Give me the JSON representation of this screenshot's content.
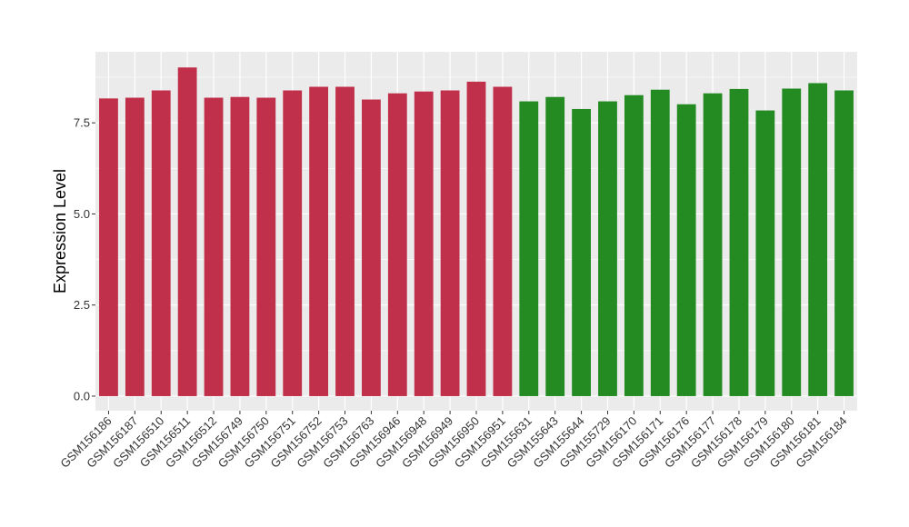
{
  "chart_data": {
    "type": "bar",
    "title": "",
    "xlabel": "",
    "ylabel": "Expression Level",
    "ylim": [
      -0.4,
      9.45
    ],
    "yticks": [
      0.0,
      2.5,
      5.0,
      7.5
    ],
    "ytick_labels": [
      "0.0",
      "2.5",
      "5.0",
      "7.5"
    ],
    "grid": true,
    "legend": "none",
    "categories": [
      "GSM156186",
      "GSM156187",
      "GSM156510",
      "GSM156511",
      "GSM156512",
      "GSM156749",
      "GSM156750",
      "GSM156751",
      "GSM156752",
      "GSM156753",
      "GSM156763",
      "GSM156946",
      "GSM156948",
      "GSM156949",
      "GSM156950",
      "GSM156951",
      "GSM155631",
      "GSM155643",
      "GSM155644",
      "GSM155729",
      "GSM156170",
      "GSM156171",
      "GSM156176",
      "GSM156177",
      "GSM156178",
      "GSM156179",
      "GSM156180",
      "GSM156181",
      "GSM156184"
    ],
    "values": [
      8.17,
      8.19,
      8.39,
      9.02,
      8.19,
      8.21,
      8.19,
      8.39,
      8.49,
      8.49,
      8.14,
      8.31,
      8.36,
      8.39,
      8.63,
      8.49,
      8.09,
      8.21,
      7.88,
      8.09,
      8.26,
      8.41,
      8.01,
      8.31,
      8.43,
      7.84,
      8.44,
      8.59,
      8.39
    ],
    "bar_colors": [
      "#c0304a",
      "#c0304a",
      "#c0304a",
      "#c0304a",
      "#c0304a",
      "#c0304a",
      "#c0304a",
      "#c0304a",
      "#c0304a",
      "#c0304a",
      "#c0304a",
      "#c0304a",
      "#c0304a",
      "#c0304a",
      "#c0304a",
      "#c0304a",
      "#238b22",
      "#238b22",
      "#238b22",
      "#238b22",
      "#238b22",
      "#238b22",
      "#238b22",
      "#238b22",
      "#238b22",
      "#238b22",
      "#238b22",
      "#238b22",
      "#238b22"
    ],
    "panel_background": "#ebebeb",
    "gridline_color": "#ffffff"
  }
}
